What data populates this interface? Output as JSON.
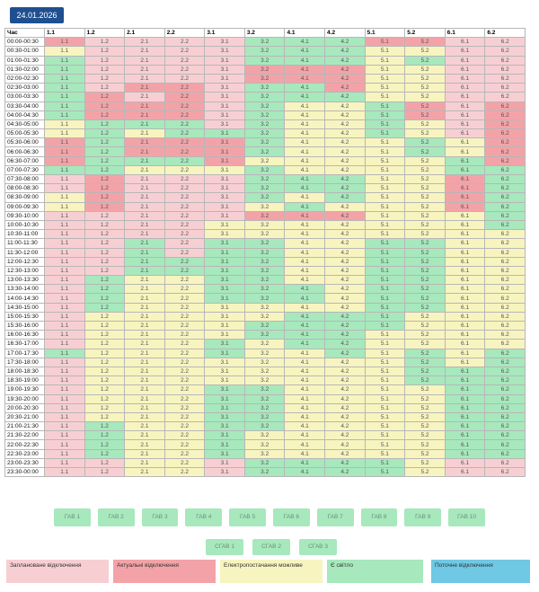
{
  "date_label": "24.01.2026",
  "table": {
    "time_header": "Час",
    "columns": [
      "1.1",
      "1.2",
      "2.1",
      "2.2",
      "3.1",
      "3.2",
      "4.1",
      "4.2",
      "5.1",
      "5.2",
      "6.1",
      "6.2"
    ],
    "rows": [
      {
        "time": "00:00-00:30",
        "states": [
          1,
          0,
          0,
          0,
          0,
          3,
          3,
          3,
          1,
          1,
          0,
          0
        ]
      },
      {
        "time": "00:30-01:00",
        "states": [
          2,
          0,
          0,
          0,
          0,
          3,
          3,
          3,
          2,
          2,
          0,
          0
        ]
      },
      {
        "time": "01:00-01:30",
        "states": [
          3,
          0,
          0,
          0,
          0,
          3,
          3,
          3,
          2,
          3,
          0,
          0
        ]
      },
      {
        "time": "01:30-02:00",
        "states": [
          3,
          0,
          0,
          0,
          0,
          1,
          1,
          1,
          2,
          2,
          0,
          0
        ]
      },
      {
        "time": "02:00-02:30",
        "states": [
          3,
          0,
          0,
          0,
          0,
          1,
          1,
          1,
          2,
          2,
          0,
          0
        ]
      },
      {
        "time": "02:30-03:00",
        "states": [
          3,
          0,
          1,
          1,
          0,
          3,
          3,
          1,
          2,
          2,
          0,
          0
        ]
      },
      {
        "time": "03:00-03:30",
        "states": [
          3,
          1,
          0,
          1,
          0,
          3,
          3,
          3,
          2,
          2,
          0,
          0
        ]
      },
      {
        "time": "03:30-04:00",
        "states": [
          3,
          1,
          1,
          1,
          0,
          3,
          2,
          2,
          3,
          1,
          0,
          1
        ]
      },
      {
        "time": "04:00-04:30",
        "states": [
          3,
          1,
          1,
          1,
          0,
          3,
          2,
          2,
          3,
          1,
          0,
          1
        ]
      },
      {
        "time": "04:30-05:00",
        "states": [
          2,
          3,
          3,
          3,
          0,
          3,
          2,
          2,
          3,
          2,
          0,
          1
        ]
      },
      {
        "time": "05:00-05:30",
        "states": [
          2,
          3,
          2,
          3,
          3,
          3,
          2,
          2,
          3,
          2,
          0,
          1
        ]
      },
      {
        "time": "05:30-06:00",
        "states": [
          1,
          3,
          1,
          1,
          1,
          3,
          2,
          2,
          2,
          3,
          2,
          1
        ]
      },
      {
        "time": "06:00-06:30",
        "states": [
          1,
          3,
          1,
          1,
          1,
          3,
          2,
          2,
          2,
          3,
          2,
          1
        ]
      },
      {
        "time": "06:30-07:00",
        "states": [
          1,
          3,
          3,
          3,
          1,
          2,
          2,
          2,
          2,
          2,
          3,
          1
        ]
      },
      {
        "time": "07:00-07:30",
        "states": [
          3,
          3,
          2,
          2,
          2,
          3,
          2,
          2,
          2,
          2,
          3,
          3
        ]
      },
      {
        "time": "07:30-08:00",
        "states": [
          0,
          1,
          0,
          0,
          0,
          3,
          3,
          3,
          2,
          2,
          1,
          3
        ]
      },
      {
        "time": "08:00-08:30",
        "states": [
          0,
          1,
          0,
          0,
          0,
          3,
          3,
          3,
          2,
          2,
          1,
          3
        ]
      },
      {
        "time": "08:30-09:00",
        "states": [
          2,
          1,
          0,
          0,
          0,
          3,
          2,
          3,
          2,
          2,
          1,
          3
        ]
      },
      {
        "time": "09:00-09:30",
        "states": [
          2,
          1,
          0,
          0,
          0,
          2,
          3,
          2,
          2,
          2,
          1,
          3
        ]
      },
      {
        "time": "09:30-10:00",
        "states": [
          0,
          0,
          0,
          0,
          0,
          1,
          1,
          1,
          2,
          2,
          2,
          3
        ]
      },
      {
        "time": "10:00-10:30",
        "states": [
          0,
          0,
          0,
          0,
          2,
          2,
          2,
          2,
          2,
          2,
          2,
          3
        ]
      },
      {
        "time": "10:30-11:00",
        "states": [
          0,
          0,
          0,
          0,
          2,
          2,
          2,
          2,
          2,
          2,
          2,
          2
        ]
      },
      {
        "time": "11:00-11:30",
        "states": [
          0,
          0,
          3,
          0,
          3,
          3,
          2,
          2,
          3,
          3,
          2,
          2
        ]
      },
      {
        "time": "11:30-12:00",
        "states": [
          0,
          0,
          3,
          0,
          3,
          3,
          2,
          2,
          3,
          3,
          2,
          2
        ]
      },
      {
        "time": "12:00-12:30",
        "states": [
          0,
          0,
          3,
          3,
          3,
          3,
          2,
          2,
          3,
          3,
          2,
          2
        ]
      },
      {
        "time": "12:30-13:00",
        "states": [
          0,
          0,
          3,
          3,
          3,
          3,
          2,
          2,
          3,
          3,
          2,
          2
        ]
      },
      {
        "time": "13:00-13:30",
        "states": [
          0,
          3,
          2,
          2,
          3,
          3,
          2,
          2,
          3,
          3,
          2,
          2
        ]
      },
      {
        "time": "13:30-14:00",
        "states": [
          0,
          3,
          2,
          2,
          3,
          3,
          3,
          2,
          3,
          3,
          2,
          2
        ]
      },
      {
        "time": "14:00-14:30",
        "states": [
          0,
          3,
          2,
          2,
          3,
          3,
          3,
          2,
          3,
          3,
          2,
          2
        ]
      },
      {
        "time": "14:30-15:00",
        "states": [
          0,
          3,
          2,
          2,
          2,
          2,
          2,
          2,
          3,
          3,
          2,
          2
        ]
      },
      {
        "time": "15:00-15:30",
        "states": [
          0,
          2,
          2,
          2,
          2,
          2,
          3,
          3,
          3,
          2,
          2,
          2
        ]
      },
      {
        "time": "15:30-16:00",
        "states": [
          0,
          2,
          2,
          2,
          2,
          3,
          3,
          3,
          3,
          2,
          2,
          2
        ]
      },
      {
        "time": "16:00-16:30",
        "states": [
          0,
          2,
          2,
          2,
          2,
          3,
          3,
          3,
          2,
          2,
          2,
          2
        ]
      },
      {
        "time": "16:30-17:00",
        "states": [
          0,
          2,
          2,
          2,
          3,
          2,
          3,
          3,
          2,
          2,
          2,
          2
        ]
      },
      {
        "time": "17:00-17:30",
        "states": [
          3,
          2,
          2,
          2,
          3,
          2,
          2,
          3,
          2,
          3,
          2,
          3
        ]
      },
      {
        "time": "17:30-18:00",
        "states": [
          0,
          2,
          2,
          2,
          2,
          2,
          2,
          2,
          2,
          3,
          2,
          3
        ]
      },
      {
        "time": "18:00-18:30",
        "states": [
          0,
          2,
          2,
          2,
          2,
          2,
          2,
          2,
          2,
          3,
          3,
          3
        ]
      },
      {
        "time": "18:30-19:00",
        "states": [
          0,
          2,
          2,
          2,
          2,
          2,
          2,
          2,
          2,
          3,
          3,
          3
        ]
      },
      {
        "time": "19:00-19:30",
        "states": [
          0,
          2,
          2,
          2,
          3,
          3,
          2,
          2,
          2,
          2,
          3,
          3
        ]
      },
      {
        "time": "19:30-20:00",
        "states": [
          0,
          2,
          2,
          2,
          3,
          3,
          2,
          2,
          2,
          2,
          3,
          3
        ]
      },
      {
        "time": "20:00-20:30",
        "states": [
          0,
          2,
          2,
          2,
          3,
          3,
          2,
          2,
          2,
          2,
          3,
          3
        ]
      },
      {
        "time": "20:30-21:00",
        "states": [
          0,
          2,
          2,
          2,
          3,
          3,
          2,
          2,
          2,
          2,
          3,
          3
        ]
      },
      {
        "time": "21:00-21:30",
        "states": [
          0,
          3,
          2,
          2,
          3,
          3,
          2,
          2,
          2,
          2,
          3,
          3
        ]
      },
      {
        "time": "21:30-22:00",
        "states": [
          0,
          3,
          2,
          2,
          3,
          2,
          2,
          2,
          2,
          2,
          3,
          3
        ]
      },
      {
        "time": "22:00-22:30",
        "states": [
          0,
          3,
          2,
          2,
          3,
          2,
          2,
          2,
          2,
          2,
          3,
          3
        ]
      },
      {
        "time": "22:30-23:00",
        "states": [
          0,
          3,
          2,
          2,
          3,
          2,
          2,
          2,
          2,
          2,
          3,
          3
        ]
      },
      {
        "time": "23:00-23:30",
        "states": [
          0,
          0,
          2,
          2,
          0,
          3,
          3,
          3,
          3,
          2,
          0,
          0
        ]
      },
      {
        "time": "23:30-00:00",
        "states": [
          0,
          0,
          2,
          2,
          0,
          3,
          3,
          3,
          3,
          2,
          0,
          0
        ]
      }
    ]
  },
  "gav_buttons": [
    "ГАВ 1",
    "ГАВ 2",
    "ГАВ 3",
    "ГАВ 4",
    "ГАВ 5",
    "ГАВ 6",
    "ГАВ 7",
    "ГАВ 8",
    "ГАВ 9",
    "ГАВ 10"
  ],
  "sgav_buttons": [
    "СГАВ 1",
    "СГАВ 2",
    "СГАВ 3"
  ],
  "legend": {
    "planned": "Заплановане відключення",
    "actual": "Актуальні відключення",
    "possible": "Електропостачання можливе",
    "power": "Є світло",
    "current": "Поточне відключення"
  },
  "colors": {
    "planned": "#f7cfd3",
    "actual": "#f3a3a8",
    "possible": "#f7f4bf",
    "power": "#a7e8bd",
    "current": "#6fc8e4"
  }
}
